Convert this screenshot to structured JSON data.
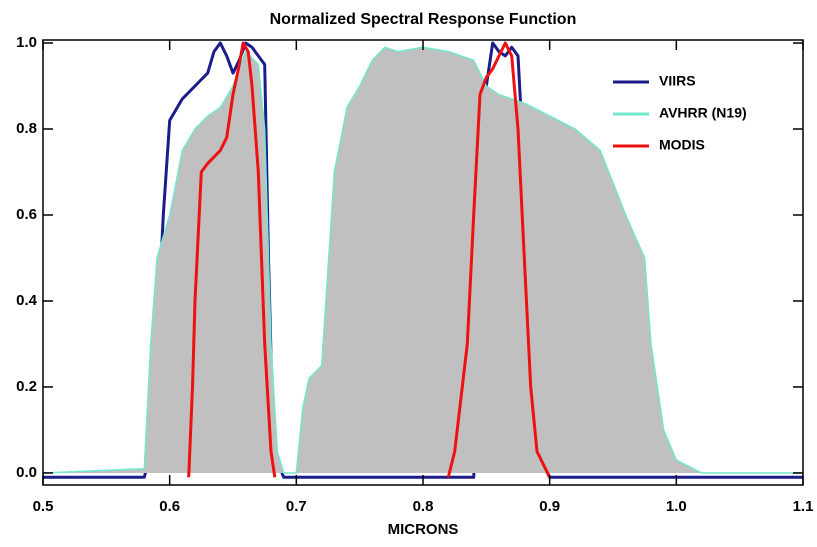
{
  "chart_data": {
    "type": "line",
    "title": "Normalized Spectral Response Function",
    "xlabel": "MICRONS",
    "xlim": [
      0.5,
      1.1
    ],
    "ylim": [
      -0.028,
      1.007
    ],
    "xticks": [
      0.5,
      0.6,
      0.7,
      0.8,
      0.9,
      {
        "value": 1.0,
        "label": "1.0"
      },
      1.1
    ],
    "yticks": [
      {
        "value": 0,
        "label": "0.0"
      },
      0.2,
      0.4,
      0.6,
      0.8,
      {
        "value": 1.0,
        "label": "1.0"
      }
    ],
    "legend": "upper right",
    "series": [
      {
        "name": "VIIRS",
        "color": "#1c1c8a",
        "x": [
          0.5,
          0.58,
          0.585,
          0.59,
          0.595,
          0.6,
          0.61,
          0.62,
          0.63,
          0.635,
          0.64,
          0.645,
          0.65,
          0.655,
          0.66,
          0.665,
          0.67,
          0.675,
          0.678,
          0.682,
          0.69,
          0.84,
          0.845,
          0.85,
          0.855,
          0.86,
          0.865,
          0.87,
          0.875,
          0.88,
          0.885,
          0.89,
          0.9,
          1.1
        ],
        "values": [
          -0.01,
          -0.01,
          0.05,
          0.3,
          0.6,
          0.82,
          0.87,
          0.9,
          0.93,
          0.98,
          1.0,
          0.97,
          0.93,
          0.96,
          1.0,
          0.99,
          0.97,
          0.95,
          0.5,
          0.05,
          -0.01,
          -0.01,
          0.3,
          0.9,
          1.0,
          0.98,
          0.97,
          0.99,
          0.97,
          0.7,
          0.3,
          0.05,
          -0.01,
          -0.01
        ]
      },
      {
        "name": "AVHRR (N19)",
        "color": "#6fe8cc",
        "fill": "#c0c0c0",
        "x": [
          0.5,
          0.58,
          0.585,
          0.59,
          0.6,
          0.61,
          0.62,
          0.63,
          0.64,
          0.65,
          0.66,
          0.67,
          0.675,
          0.68,
          0.685,
          0.69,
          0.7,
          0.705,
          0.71,
          0.72,
          0.73,
          0.74,
          0.75,
          0.76,
          0.77,
          0.78,
          0.8,
          0.82,
          0.84,
          0.85,
          0.86,
          0.87,
          0.88,
          0.9,
          0.92,
          0.94,
          0.96,
          0.975,
          0.98,
          0.99,
          1.0,
          1.02,
          1.1
        ],
        "values": [
          0,
          0.01,
          0.3,
          0.5,
          0.6,
          0.75,
          0.8,
          0.83,
          0.85,
          0.9,
          0.98,
          0.95,
          0.8,
          0.3,
          0.05,
          0,
          0,
          0.15,
          0.22,
          0.25,
          0.7,
          0.85,
          0.9,
          0.96,
          0.99,
          0.98,
          0.99,
          0.98,
          0.96,
          0.9,
          0.88,
          0.87,
          0.86,
          0.83,
          0.8,
          0.75,
          0.6,
          0.5,
          0.3,
          0.1,
          0.03,
          0,
          0
        ]
      },
      {
        "name": "MODIS",
        "color": "#ee1111",
        "x": [
          0.615,
          0.618,
          0.62,
          0.625,
          0.63,
          0.64,
          0.645,
          0.65,
          0.655,
          0.658,
          0.662,
          0.665,
          0.67,
          0.675,
          0.68,
          0.683,
          0.75,
          0.82,
          0.825,
          0.835,
          0.84,
          0.845,
          0.85,
          0.855,
          0.86,
          0.865,
          0.87,
          0.875,
          0.88,
          0.885,
          0.89,
          0.9
        ],
        "values": [
          -0.01,
          0.2,
          0.4,
          0.7,
          0.72,
          0.75,
          0.78,
          0.88,
          0.95,
          1.0,
          0.98,
          0.9,
          0.7,
          0.3,
          0.05,
          -0.01,
          null,
          -0.01,
          0.05,
          0.3,
          0.6,
          0.88,
          0.92,
          0.94,
          0.97,
          1.0,
          0.97,
          0.8,
          0.5,
          0.2,
          0.05,
          -0.01
        ]
      }
    ]
  }
}
